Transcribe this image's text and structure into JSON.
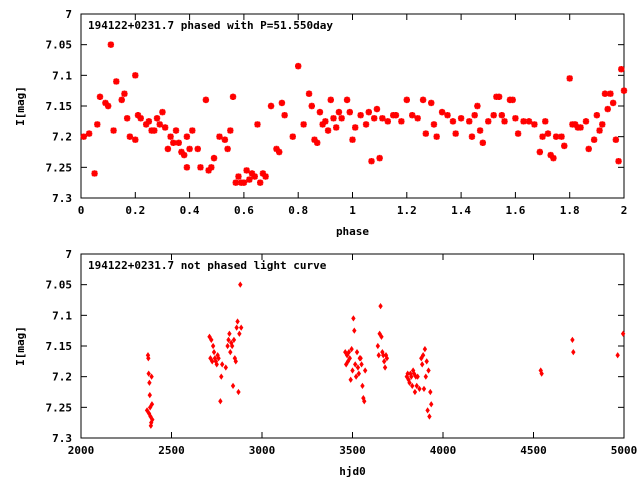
{
  "chart_data": [
    {
      "type": "scatter",
      "title": "194122+0231.7 phased with P=51.550day",
      "xlabel": "phase",
      "ylabel": "I[mag]",
      "xlim": [
        0,
        2
      ],
      "ylim": [
        7.3,
        7.0
      ],
      "y_inverted": true,
      "grid": false,
      "marker_color": "#ff0000",
      "x_ticks": [
        "0",
        "0.2",
        "0.4",
        "0.6",
        "0.8",
        "1",
        "1.2",
        "1.4",
        "1.6",
        "1.8",
        "2"
      ],
      "y_ticks": [
        "7",
        "7.05",
        "7.1",
        "7.15",
        "7.2",
        "7.25",
        "7.3"
      ],
      "points": [
        [
          0.01,
          7.2
        ],
        [
          0.03,
          7.195
        ],
        [
          0.05,
          7.26
        ],
        [
          0.06,
          7.18
        ],
        [
          0.07,
          7.135
        ],
        [
          0.09,
          7.145
        ],
        [
          0.1,
          7.15
        ],
        [
          0.11,
          7.05
        ],
        [
          0.12,
          7.19
        ],
        [
          0.13,
          7.11
        ],
        [
          0.15,
          7.14
        ],
        [
          0.16,
          7.13
        ],
        [
          0.17,
          7.17
        ],
        [
          0.18,
          7.2
        ],
        [
          0.2,
          7.205
        ],
        [
          0.2,
          7.1
        ],
        [
          0.21,
          7.165
        ],
        [
          0.22,
          7.17
        ],
        [
          0.24,
          7.18
        ],
        [
          0.25,
          7.175
        ],
        [
          0.26,
          7.19
        ],
        [
          0.27,
          7.19
        ],
        [
          0.28,
          7.17
        ],
        [
          0.29,
          7.18
        ],
        [
          0.3,
          7.16
        ],
        [
          0.31,
          7.185
        ],
        [
          0.32,
          7.22
        ],
        [
          0.33,
          7.2
        ],
        [
          0.34,
          7.21
        ],
        [
          0.35,
          7.19
        ],
        [
          0.36,
          7.21
        ],
        [
          0.37,
          7.225
        ],
        [
          0.38,
          7.23
        ],
        [
          0.39,
          7.2
        ],
        [
          0.39,
          7.25
        ],
        [
          0.4,
          7.22
        ],
        [
          0.41,
          7.19
        ],
        [
          0.43,
          7.22
        ],
        [
          0.44,
          7.25
        ],
        [
          0.46,
          7.14
        ],
        [
          0.47,
          7.255
        ],
        [
          0.48,
          7.25
        ],
        [
          0.49,
          7.235
        ],
        [
          0.51,
          7.2
        ],
        [
          0.53,
          7.205
        ],
        [
          0.54,
          7.22
        ],
        [
          0.55,
          7.19
        ],
        [
          0.56,
          7.135
        ],
        [
          0.57,
          7.275
        ],
        [
          0.58,
          7.265
        ],
        [
          0.59,
          7.275
        ],
        [
          0.6,
          7.275
        ],
        [
          0.61,
          7.255
        ],
        [
          0.62,
          7.27
        ],
        [
          0.63,
          7.26
        ],
        [
          0.64,
          7.265
        ],
        [
          0.65,
          7.18
        ],
        [
          0.66,
          7.275
        ],
        [
          0.67,
          7.26
        ],
        [
          0.68,
          7.265
        ],
        [
          0.7,
          7.15
        ],
        [
          0.72,
          7.22
        ],
        [
          0.73,
          7.225
        ],
        [
          0.74,
          7.145
        ],
        [
          0.75,
          7.165
        ],
        [
          0.78,
          7.2
        ],
        [
          0.8,
          7.085
        ],
        [
          0.82,
          7.18
        ],
        [
          0.84,
          7.13
        ],
        [
          0.85,
          7.15
        ],
        [
          0.86,
          7.205
        ],
        [
          0.87,
          7.21
        ],
        [
          0.88,
          7.16
        ],
        [
          0.89,
          7.18
        ],
        [
          0.9,
          7.175
        ],
        [
          0.91,
          7.19
        ],
        [
          0.92,
          7.14
        ],
        [
          0.93,
          7.17
        ],
        [
          0.94,
          7.185
        ],
        [
          0.95,
          7.16
        ],
        [
          0.96,
          7.17
        ],
        [
          0.98,
          7.14
        ],
        [
          0.99,
          7.16
        ],
        [
          1.0,
          7.205
        ],
        [
          1.01,
          7.185
        ],
        [
          1.03,
          7.165
        ],
        [
          1.05,
          7.18
        ],
        [
          1.06,
          7.16
        ],
        [
          1.07,
          7.24
        ],
        [
          1.08,
          7.17
        ],
        [
          1.09,
          7.155
        ],
        [
          1.1,
          7.235
        ],
        [
          1.11,
          7.17
        ],
        [
          1.13,
          7.175
        ],
        [
          1.15,
          7.165
        ],
        [
          1.16,
          7.165
        ],
        [
          1.18,
          7.175
        ],
        [
          1.2,
          7.14
        ],
        [
          1.22,
          7.165
        ],
        [
          1.24,
          7.17
        ],
        [
          1.26,
          7.14
        ],
        [
          1.27,
          7.195
        ],
        [
          1.29,
          7.145
        ],
        [
          1.3,
          7.18
        ],
        [
          1.31,
          7.2
        ],
        [
          1.33,
          7.16
        ],
        [
          1.35,
          7.165
        ],
        [
          1.37,
          7.175
        ],
        [
          1.38,
          7.195
        ],
        [
          1.4,
          7.17
        ],
        [
          1.43,
          7.175
        ],
        [
          1.44,
          7.2
        ],
        [
          1.45,
          7.165
        ],
        [
          1.46,
          7.15
        ],
        [
          1.47,
          7.19
        ],
        [
          1.48,
          7.21
        ],
        [
          1.5,
          7.175
        ],
        [
          1.52,
          7.165
        ],
        [
          1.53,
          7.135
        ],
        [
          1.54,
          7.135
        ],
        [
          1.55,
          7.165
        ],
        [
          1.56,
          7.175
        ],
        [
          1.58,
          7.14
        ],
        [
          1.59,
          7.14
        ],
        [
          1.6,
          7.17
        ],
        [
          1.61,
          7.195
        ],
        [
          1.63,
          7.175
        ],
        [
          1.65,
          7.175
        ],
        [
          1.67,
          7.18
        ],
        [
          1.69,
          7.225
        ],
        [
          1.7,
          7.2
        ],
        [
          1.71,
          7.175
        ],
        [
          1.72,
          7.195
        ],
        [
          1.73,
          7.23
        ],
        [
          1.74,
          7.235
        ],
        [
          1.75,
          7.2
        ],
        [
          1.77,
          7.2
        ],
        [
          1.78,
          7.215
        ],
        [
          1.8,
          7.105
        ],
        [
          1.81,
          7.18
        ],
        [
          1.82,
          7.18
        ],
        [
          1.83,
          7.185
        ],
        [
          1.84,
          7.185
        ],
        [
          1.86,
          7.175
        ],
        [
          1.87,
          7.22
        ],
        [
          1.89,
          7.205
        ],
        [
          1.9,
          7.165
        ],
        [
          1.91,
          7.19
        ],
        [
          1.92,
          7.18
        ],
        [
          1.93,
          7.13
        ],
        [
          1.94,
          7.155
        ],
        [
          1.95,
          7.13
        ],
        [
          1.96,
          7.145
        ],
        [
          1.97,
          7.205
        ],
        [
          1.98,
          7.24
        ],
        [
          1.99,
          7.09
        ],
        [
          2.0,
          7.125
        ]
      ]
    },
    {
      "type": "scatter",
      "title": "194122+0231.7 not phased light curve",
      "xlabel": "hjd0",
      "ylabel": "I[mag]",
      "xlim": [
        2000,
        5000
      ],
      "ylim": [
        7.3,
        7.0
      ],
      "y_inverted": true,
      "grid": false,
      "marker_color": "#ff0000",
      "x_ticks": [
        "2000",
        "2500",
        "3000",
        "3500",
        "4000",
        "4500",
        "5000"
      ],
      "y_ticks": [
        "7",
        "7.05",
        "7.1",
        "7.15",
        "7.2",
        "7.25",
        "7.3"
      ],
      "points": [
        [
          2365,
          7.255
        ],
        [
          2370,
          7.165
        ],
        [
          2372,
          7.17
        ],
        [
          2374,
          7.195
        ],
        [
          2376,
          7.26
        ],
        [
          2378,
          7.21
        ],
        [
          2380,
          7.23
        ],
        [
          2382,
          7.25
        ],
        [
          2384,
          7.265
        ],
        [
          2386,
          7.28
        ],
        [
          2388,
          7.275
        ],
        [
          2390,
          7.2
        ],
        [
          2392,
          7.245
        ],
        [
          2394,
          7.27
        ],
        [
          2710,
          7.135
        ],
        [
          2715,
          7.17
        ],
        [
          2720,
          7.14
        ],
        [
          2725,
          7.175
        ],
        [
          2730,
          7.15
        ],
        [
          2735,
          7.16
        ],
        [
          2740,
          7.17
        ],
        [
          2745,
          7.175
        ],
        [
          2750,
          7.18
        ],
        [
          2755,
          7.165
        ],
        [
          2760,
          7.17
        ],
        [
          2770,
          7.24
        ],
        [
          2775,
          7.2
        ],
        [
          2780,
          7.18
        ],
        [
          2800,
          7.185
        ],
        [
          2810,
          7.15
        ],
        [
          2815,
          7.14
        ],
        [
          2820,
          7.13
        ],
        [
          2825,
          7.16
        ],
        [
          2830,
          7.145
        ],
        [
          2835,
          7.15
        ],
        [
          2840,
          7.215
        ],
        [
          2845,
          7.14
        ],
        [
          2850,
          7.17
        ],
        [
          2855,
          7.175
        ],
        [
          2860,
          7.12
        ],
        [
          2865,
          7.11
        ],
        [
          2870,
          7.225
        ],
        [
          2875,
          7.13
        ],
        [
          2880,
          7.05
        ],
        [
          2885,
          7.12
        ],
        [
          3460,
          7.16
        ],
        [
          3465,
          7.18
        ],
        [
          3470,
          7.165
        ],
        [
          3475,
          7.175
        ],
        [
          3480,
          7.16
        ],
        [
          3485,
          7.17
        ],
        [
          3490,
          7.205
        ],
        [
          3495,
          7.155
        ],
        [
          3500,
          7.19
        ],
        [
          3505,
          7.105
        ],
        [
          3510,
          7.125
        ],
        [
          3515,
          7.18
        ],
        [
          3520,
          7.2
        ],
        [
          3525,
          7.16
        ],
        [
          3530,
          7.185
        ],
        [
          3535,
          7.195
        ],
        [
          3540,
          7.17
        ],
        [
          3545,
          7.17
        ],
        [
          3550,
          7.18
        ],
        [
          3555,
          7.215
        ],
        [
          3560,
          7.235
        ],
        [
          3565,
          7.24
        ],
        [
          3570,
          7.19
        ],
        [
          3640,
          7.15
        ],
        [
          3645,
          7.165
        ],
        [
          3650,
          7.13
        ],
        [
          3655,
          7.085
        ],
        [
          3660,
          7.135
        ],
        [
          3665,
          7.16
        ],
        [
          3670,
          7.165
        ],
        [
          3675,
          7.175
        ],
        [
          3680,
          7.185
        ],
        [
          3685,
          7.165
        ],
        [
          3690,
          7.17
        ],
        [
          3800,
          7.2
        ],
        [
          3805,
          7.195
        ],
        [
          3810,
          7.205
        ],
        [
          3815,
          7.21
        ],
        [
          3820,
          7.195
        ],
        [
          3825,
          7.2
        ],
        [
          3830,
          7.215
        ],
        [
          3835,
          7.19
        ],
        [
          3840,
          7.195
        ],
        [
          3845,
          7.225
        ],
        [
          3850,
          7.2
        ],
        [
          3855,
          7.215
        ],
        [
          3860,
          7.2
        ],
        [
          3870,
          7.22
        ],
        [
          3880,
          7.17
        ],
        [
          3885,
          7.18
        ],
        [
          3890,
          7.165
        ],
        [
          3895,
          7.22
        ],
        [
          3900,
          7.155
        ],
        [
          3905,
          7.2
        ],
        [
          3910,
          7.175
        ],
        [
          3915,
          7.255
        ],
        [
          3920,
          7.19
        ],
        [
          3925,
          7.265
        ],
        [
          3930,
          7.225
        ],
        [
          3935,
          7.245
        ],
        [
          4540,
          7.19
        ],
        [
          4545,
          7.195
        ],
        [
          4715,
          7.14
        ],
        [
          4720,
          7.16
        ],
        [
          4965,
          7.165
        ],
        [
          4995,
          7.13
        ]
      ]
    }
  ]
}
